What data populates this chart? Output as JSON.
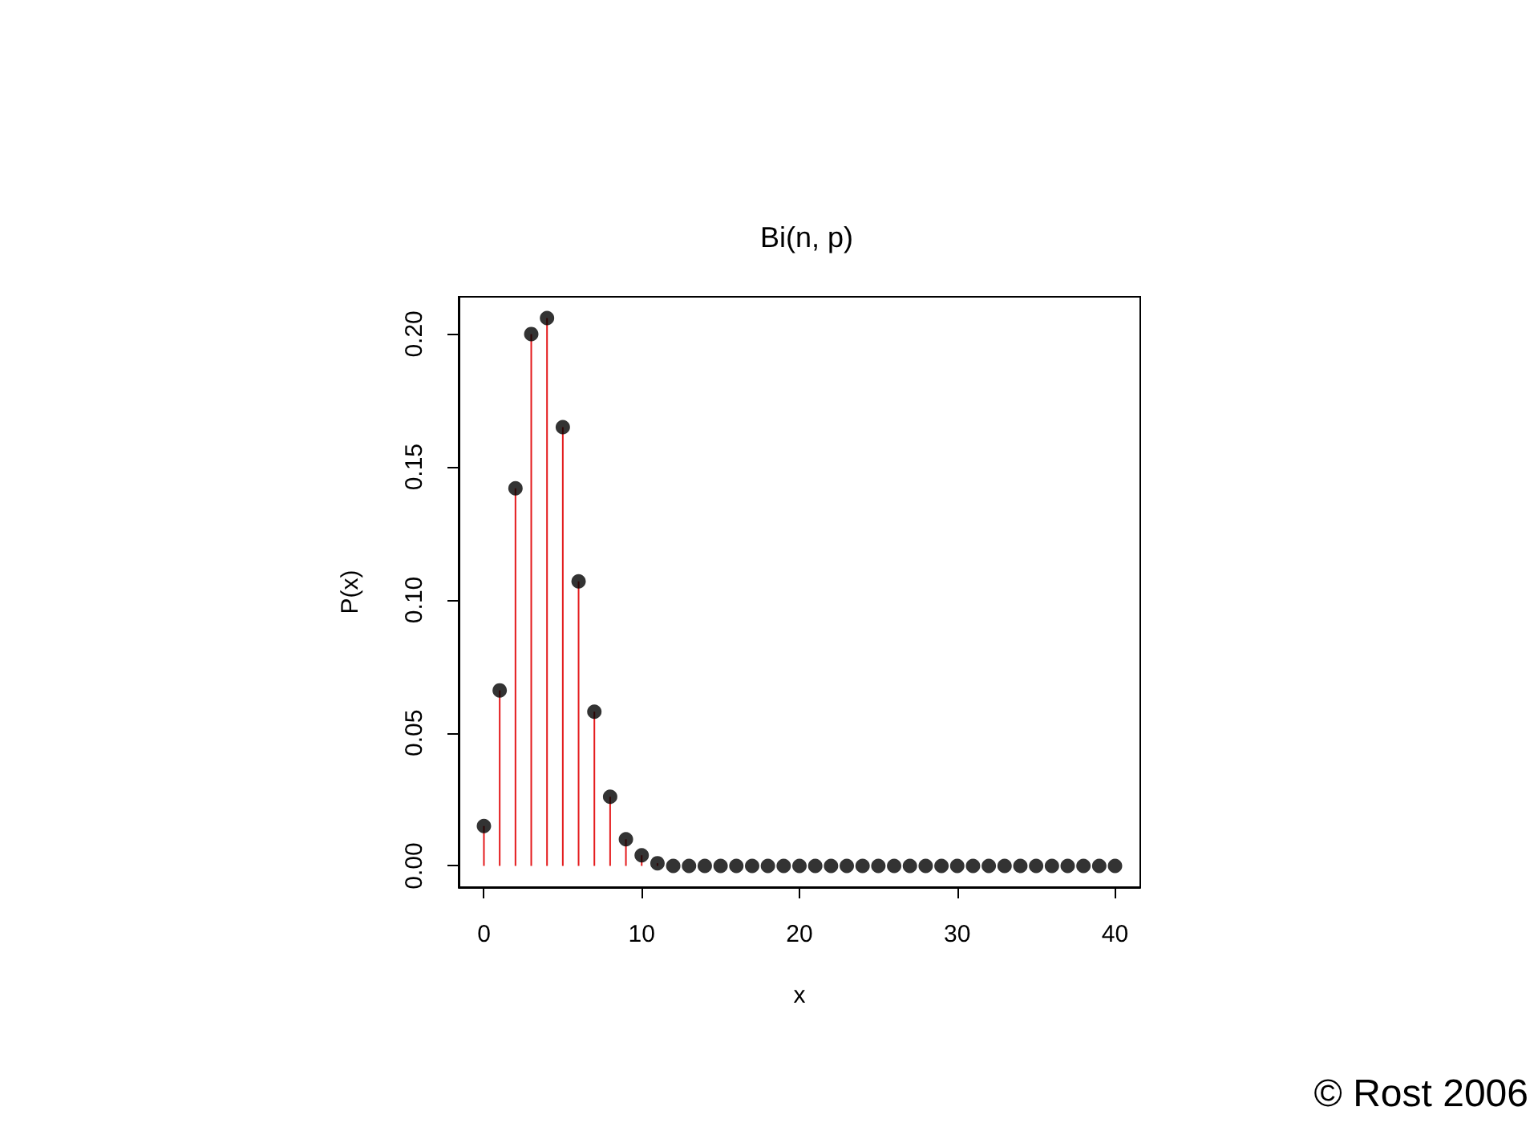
{
  "chart_data": {
    "type": "lollipop",
    "title": "Bi(n, p)",
    "xlabel": "x",
    "ylabel": "P(x)",
    "x": [
      0,
      1,
      2,
      3,
      4,
      5,
      6,
      7,
      8,
      9,
      10,
      11,
      12,
      13,
      14,
      15,
      16,
      17,
      18,
      19,
      20,
      21,
      22,
      23,
      24,
      25,
      26,
      27,
      28,
      29,
      30,
      31,
      32,
      33,
      34,
      35,
      36,
      37,
      38,
      39,
      40
    ],
    "series": [
      {
        "color": "#000000",
        "values": [
          0.015,
          0.066,
          0.142,
          0.2,
          0.206,
          0.165,
          0.107,
          0.058,
          0.026,
          0.01,
          0.004,
          0.001,
          0,
          0,
          0,
          0,
          0,
          0,
          0,
          0,
          0,
          0,
          0,
          0,
          0,
          0,
          0,
          0,
          0,
          0,
          0,
          0,
          0,
          0,
          0,
          0,
          0,
          0,
          0,
          0,
          0
        ]
      }
    ],
    "xlim": [
      -1.6,
      41.6
    ],
    "xticks": [
      0,
      10,
      20,
      30,
      40
    ],
    "ylim": [
      -0.008,
      0.214
    ],
    "yticks": [
      {
        "value": 0,
        "label": "0.00"
      },
      0.05,
      {
        "value": 0.1,
        "label": "0.10"
      },
      0.15,
      {
        "value": 0.2,
        "label": "0.20"
      }
    ],
    "marker": "circle",
    "grid": false,
    "annotations": [
      "© Rost 2006"
    ]
  }
}
